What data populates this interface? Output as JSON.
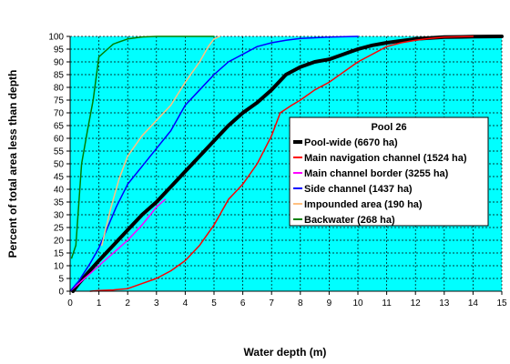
{
  "chart_data": {
    "type": "line",
    "title": "",
    "xlabel": "Water depth (m)",
    "ylabel": "Percent of total area less than depth",
    "xlim": [
      0,
      15
    ],
    "ylim": [
      0,
      100
    ],
    "xticks": [
      0,
      1,
      2,
      3,
      4,
      5,
      6,
      7,
      8,
      9,
      10,
      11,
      12,
      13,
      14,
      15
    ],
    "yticks": [
      0,
      5,
      10,
      15,
      20,
      25,
      30,
      35,
      40,
      45,
      50,
      55,
      60,
      65,
      70,
      75,
      80,
      85,
      90,
      95,
      100
    ],
    "grid": true,
    "plot_background": "#00FFFF",
    "legend": {
      "title": "Pool 26",
      "placement": "right-center"
    },
    "series": [
      {
        "name": "Pool-wide (6670 ha)",
        "color": "#000000",
        "width": 4,
        "points": [
          [
            0.1,
            0
          ],
          [
            0.3,
            3
          ],
          [
            0.6,
            7
          ],
          [
            1,
            12
          ],
          [
            1.5,
            18
          ],
          [
            2,
            24
          ],
          [
            2.5,
            30
          ],
          [
            3,
            35
          ],
          [
            3.5,
            41
          ],
          [
            4,
            47
          ],
          [
            4.5,
            53
          ],
          [
            5,
            59
          ],
          [
            5.5,
            65
          ],
          [
            6,
            70
          ],
          [
            6.5,
            74
          ],
          [
            7,
            79
          ],
          [
            7.5,
            85
          ],
          [
            8,
            88
          ],
          [
            8.5,
            90
          ],
          [
            9,
            91
          ],
          [
            9.5,
            93
          ],
          [
            10,
            95
          ],
          [
            10.5,
            96.5
          ],
          [
            11,
            97.5
          ],
          [
            11.5,
            98.3
          ],
          [
            12,
            99
          ],
          [
            12.5,
            99.4
          ],
          [
            13,
            99.7
          ],
          [
            14,
            99.9
          ],
          [
            15,
            100
          ]
        ]
      },
      {
        "name": "Main navigation channel (1524 ha)",
        "color": "#FF0000",
        "width": 1.5,
        "points": [
          [
            0.7,
            0
          ],
          [
            1,
            0.3
          ],
          [
            1.5,
            0.5
          ],
          [
            2,
            1
          ],
          [
            2.5,
            3
          ],
          [
            3,
            5
          ],
          [
            3.5,
            8
          ],
          [
            4,
            12
          ],
          [
            4.5,
            18
          ],
          [
            5,
            26
          ],
          [
            5.5,
            36
          ],
          [
            6,
            42
          ],
          [
            6.5,
            50
          ],
          [
            7,
            61
          ],
          [
            7.3,
            70
          ],
          [
            7.7,
            73
          ],
          [
            8,
            75
          ],
          [
            8.5,
            79
          ],
          [
            9,
            82
          ],
          [
            9.5,
            86
          ],
          [
            10,
            90
          ],
          [
            10.5,
            93
          ],
          [
            11,
            96
          ],
          [
            11.5,
            97.5
          ],
          [
            12,
            98.5
          ],
          [
            12.5,
            99.2
          ],
          [
            13,
            99.7
          ],
          [
            14,
            100
          ]
        ]
      },
      {
        "name": "Main channel border (3255 ha)",
        "color": "#FF00FF",
        "width": 1.5,
        "points": [
          [
            0,
            0
          ],
          [
            0.3,
            3
          ],
          [
            0.6,
            6
          ],
          [
            1,
            10
          ],
          [
            1.5,
            15
          ],
          [
            2,
            20
          ],
          [
            2.5,
            26
          ],
          [
            3,
            33
          ],
          [
            3.3,
            36
          ]
        ]
      },
      {
        "name": "Side channel (1437 ha)",
        "color": "#0000FF",
        "width": 1.5,
        "points": [
          [
            0,
            0
          ],
          [
            0.3,
            4
          ],
          [
            0.7,
            11
          ],
          [
            1,
            17
          ],
          [
            1.3,
            25
          ],
          [
            1.6,
            33
          ],
          [
            2,
            42
          ],
          [
            2.5,
            49
          ],
          [
            3,
            56
          ],
          [
            3.5,
            63
          ],
          [
            4,
            73
          ],
          [
            4.5,
            79
          ],
          [
            5,
            85
          ],
          [
            5.5,
            90
          ],
          [
            6,
            93
          ],
          [
            6.5,
            96
          ],
          [
            7,
            97.5
          ],
          [
            7.5,
            98.5
          ],
          [
            8,
            99.2
          ],
          [
            9,
            99.7
          ],
          [
            10,
            100
          ]
        ]
      },
      {
        "name": "Impounded area (190 ha)",
        "color": "#FFC080",
        "width": 1.5,
        "points": [
          [
            1.1,
            18
          ],
          [
            1.4,
            32
          ],
          [
            1.7,
            44
          ],
          [
            2,
            53
          ],
          [
            2.5,
            61
          ],
          [
            3,
            67
          ],
          [
            3.5,
            73
          ],
          [
            4,
            82
          ],
          [
            4.5,
            90
          ],
          [
            4.8,
            96
          ],
          [
            5,
            99
          ],
          [
            5.2,
            100
          ]
        ]
      },
      {
        "name": "Backwater (268 ha)",
        "color": "#008000",
        "width": 1.5,
        "points": [
          [
            0.05,
            13
          ],
          [
            0.2,
            18
          ],
          [
            0.4,
            50
          ],
          [
            0.6,
            63
          ],
          [
            0.8,
            75
          ],
          [
            1,
            92
          ],
          [
            1.3,
            95
          ],
          [
            1.5,
            97
          ],
          [
            2,
            99
          ],
          [
            2.5,
            99.8
          ],
          [
            3,
            100
          ],
          [
            5,
            100
          ]
        ]
      }
    ]
  }
}
